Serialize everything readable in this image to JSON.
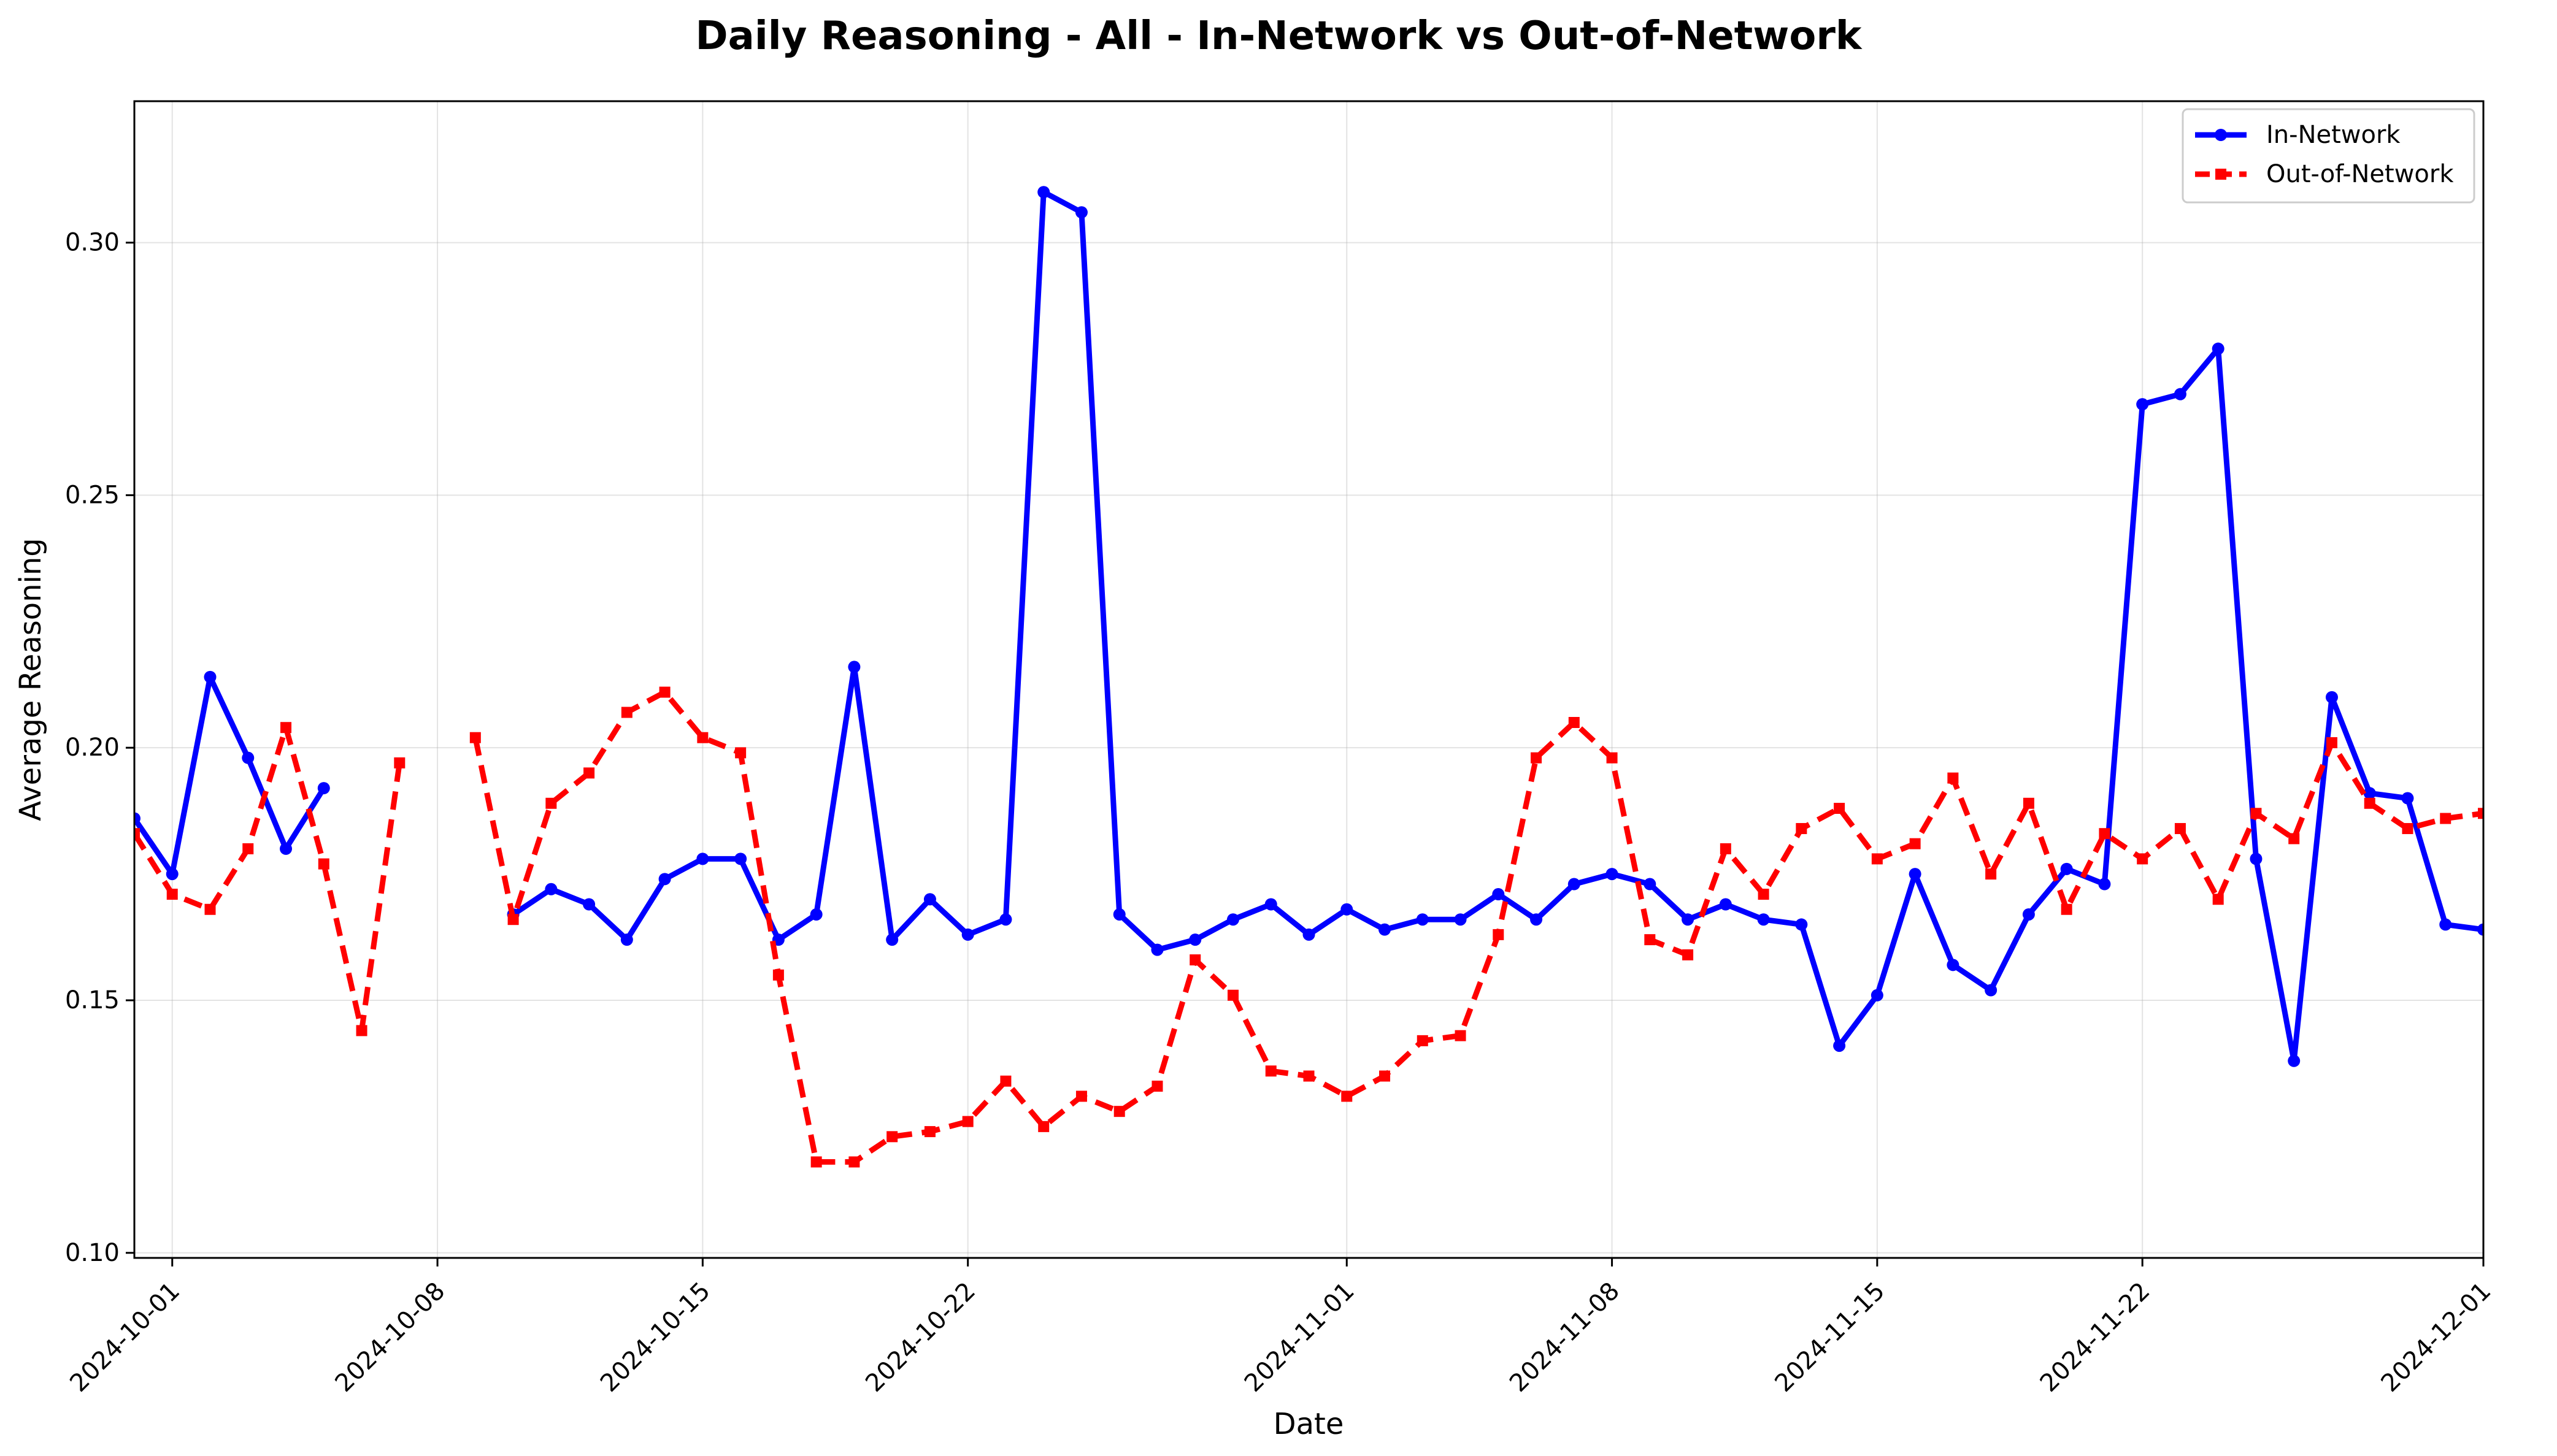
{
  "chart_data": {
    "type": "line",
    "title": "Daily Reasoning - All - In-Network vs Out-of-Network",
    "xlabel": "Date",
    "ylabel": "Average Reasoning",
    "grid": true,
    "legend_position": "top-right",
    "x_range": [
      "2024-09-30",
      "2024-12-01"
    ],
    "ylim": [
      0.099,
      0.328
    ],
    "x_ticks": [
      "2024-10-01",
      "2024-10-08",
      "2024-10-15",
      "2024-10-22",
      "2024-11-01",
      "2024-11-08",
      "2024-11-15",
      "2024-11-22",
      "2024-12-01"
    ],
    "y_ticks": [
      "0.10",
      "0.15",
      "0.20",
      "0.25",
      "0.30"
    ],
    "series": [
      {
        "name": "In-Network",
        "color": "#0000ff",
        "line_style": "solid",
        "marker": "circle",
        "points": [
          [
            "2024-09-30",
            0.186
          ],
          [
            "2024-10-01",
            0.175
          ],
          [
            "2024-10-02",
            0.214
          ],
          [
            "2024-10-03",
            0.198
          ],
          [
            "2024-10-04",
            0.18
          ],
          [
            "2024-10-05",
            0.192
          ],
          [
            "2024-10-10",
            0.167
          ],
          [
            "2024-10-11",
            0.172
          ],
          [
            "2024-10-12",
            0.169
          ],
          [
            "2024-10-13",
            0.162
          ],
          [
            "2024-10-14",
            0.174
          ],
          [
            "2024-10-15",
            0.178
          ],
          [
            "2024-10-16",
            0.178
          ],
          [
            "2024-10-17",
            0.162
          ],
          [
            "2024-10-18",
            0.167
          ],
          [
            "2024-10-19",
            0.216
          ],
          [
            "2024-10-20",
            0.162
          ],
          [
            "2024-10-21",
            0.17
          ],
          [
            "2024-10-22",
            0.163
          ],
          [
            "2024-10-23",
            0.166
          ],
          [
            "2024-10-24",
            0.31
          ],
          [
            "2024-10-25",
            0.306
          ],
          [
            "2024-10-26",
            0.167
          ],
          [
            "2024-10-27",
            0.16
          ],
          [
            "2024-10-28",
            0.162
          ],
          [
            "2024-10-29",
            0.166
          ],
          [
            "2024-10-30",
            0.169
          ],
          [
            "2024-10-31",
            0.163
          ],
          [
            "2024-11-01",
            0.168
          ],
          [
            "2024-11-02",
            0.164
          ],
          [
            "2024-11-03",
            0.166
          ],
          [
            "2024-11-04",
            0.166
          ],
          [
            "2024-11-05",
            0.171
          ],
          [
            "2024-11-06",
            0.166
          ],
          [
            "2024-11-07",
            0.173
          ],
          [
            "2024-11-08",
            0.175
          ],
          [
            "2024-11-09",
            0.173
          ],
          [
            "2024-11-10",
            0.166
          ],
          [
            "2024-11-11",
            0.169
          ],
          [
            "2024-11-12",
            0.166
          ],
          [
            "2024-11-13",
            0.165
          ],
          [
            "2024-11-14",
            0.141
          ],
          [
            "2024-11-15",
            0.151
          ],
          [
            "2024-11-16",
            0.175
          ],
          [
            "2024-11-17",
            0.157
          ],
          [
            "2024-11-18",
            0.152
          ],
          [
            "2024-11-19",
            0.167
          ],
          [
            "2024-11-20",
            0.176
          ],
          [
            "2024-11-21",
            0.173
          ],
          [
            "2024-11-22",
            0.268
          ],
          [
            "2024-11-23",
            0.27
          ],
          [
            "2024-11-24",
            0.279
          ],
          [
            "2024-11-25",
            0.178
          ],
          [
            "2024-11-26",
            0.138
          ],
          [
            "2024-11-27",
            0.21
          ],
          [
            "2024-11-28",
            0.191
          ],
          [
            "2024-11-29",
            0.19
          ],
          [
            "2024-11-30",
            0.165
          ],
          [
            "2024-12-01",
            0.164
          ]
        ]
      },
      {
        "name": "Out-of-Network",
        "color": "#ff0000",
        "line_style": "dashed",
        "marker": "square",
        "points": [
          [
            "2024-09-30",
            0.183
          ],
          [
            "2024-10-01",
            0.171
          ],
          [
            "2024-10-02",
            0.168
          ],
          [
            "2024-10-03",
            0.18
          ],
          [
            "2024-10-04",
            0.204
          ],
          [
            "2024-10-05",
            0.177
          ],
          [
            "2024-10-06",
            0.144
          ],
          [
            "2024-10-07",
            0.197
          ],
          [
            "2024-10-09",
            0.202
          ],
          [
            "2024-10-10",
            0.166
          ],
          [
            "2024-10-11",
            0.189
          ],
          [
            "2024-10-12",
            0.195
          ],
          [
            "2024-10-13",
            0.207
          ],
          [
            "2024-10-14",
            0.211
          ],
          [
            "2024-10-15",
            0.202
          ],
          [
            "2024-10-16",
            0.199
          ],
          [
            "2024-10-17",
            0.155
          ],
          [
            "2024-10-18",
            0.118
          ],
          [
            "2024-10-19",
            0.118
          ],
          [
            "2024-10-20",
            0.123
          ],
          [
            "2024-10-21",
            0.124
          ],
          [
            "2024-10-22",
            0.126
          ],
          [
            "2024-10-23",
            0.134
          ],
          [
            "2024-10-24",
            0.125
          ],
          [
            "2024-10-25",
            0.131
          ],
          [
            "2024-10-26",
            0.128
          ],
          [
            "2024-10-27",
            0.133
          ],
          [
            "2024-10-28",
            0.158
          ],
          [
            "2024-10-29",
            0.151
          ],
          [
            "2024-10-30",
            0.136
          ],
          [
            "2024-10-31",
            0.135
          ],
          [
            "2024-11-01",
            0.131
          ],
          [
            "2024-11-02",
            0.135
          ],
          [
            "2024-11-03",
            0.142
          ],
          [
            "2024-11-04",
            0.143
          ],
          [
            "2024-11-05",
            0.163
          ],
          [
            "2024-11-06",
            0.198
          ],
          [
            "2024-11-07",
            0.205
          ],
          [
            "2024-11-08",
            0.198
          ],
          [
            "2024-11-09",
            0.162
          ],
          [
            "2024-11-10",
            0.159
          ],
          [
            "2024-11-11",
            0.18
          ],
          [
            "2024-11-12",
            0.171
          ],
          [
            "2024-11-13",
            0.184
          ],
          [
            "2024-11-14",
            0.188
          ],
          [
            "2024-11-15",
            0.178
          ],
          [
            "2024-11-16",
            0.181
          ],
          [
            "2024-11-17",
            0.194
          ],
          [
            "2024-11-18",
            0.175
          ],
          [
            "2024-11-19",
            0.189
          ],
          [
            "2024-11-20",
            0.168
          ],
          [
            "2024-11-21",
            0.183
          ],
          [
            "2024-11-22",
            0.178
          ],
          [
            "2024-11-23",
            0.184
          ],
          [
            "2024-11-24",
            0.17
          ],
          [
            "2024-11-25",
            0.187
          ],
          [
            "2024-11-26",
            0.182
          ],
          [
            "2024-11-27",
            0.201
          ],
          [
            "2024-11-28",
            0.189
          ],
          [
            "2024-11-29",
            0.184
          ],
          [
            "2024-11-30",
            0.186
          ],
          [
            "2024-12-01",
            0.187
          ]
        ]
      }
    ]
  }
}
